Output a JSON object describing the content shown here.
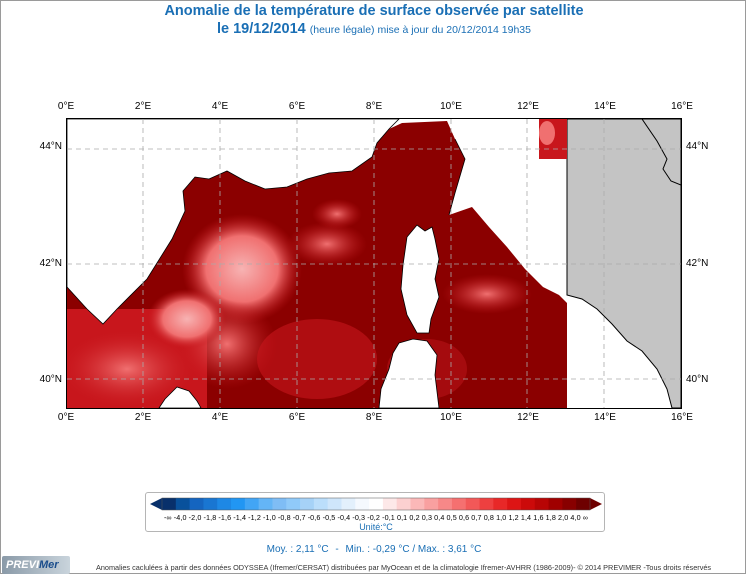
{
  "title": {
    "line1": "Anomalie de la température de surface observée par satellite",
    "date": "le 19/12/2014",
    "subtitle": "(heure légale) mise à jour du 20/12/2014 19h35"
  },
  "map": {
    "lon_labels": [
      "0°E",
      "2°E",
      "4°E",
      "6°E",
      "8°E",
      "10°E",
      "12°E",
      "14°E",
      "16°E"
    ],
    "lat_labels": [
      "44°N",
      "42°N",
      "40°N"
    ],
    "lon_range": [
      0,
      16
    ],
    "lat_range": [
      39.5,
      44.5
    ],
    "colors": {
      "land": "#c4c4c4",
      "anomaly_dark": "#8b0000",
      "anomaly_mid": "#c8161c",
      "anomaly_light": "#f07070",
      "anomaly_pale": "#f7b3b3",
      "no_data": "#ffffff"
    }
  },
  "legend": {
    "labels": "-∞ -4,0 -2,0 -1,8 -1,6 -1,4 -1,2 -1,0 -0,8 -0,7 -0,6 -0,5 -0,4 -0,3 -0,2 -0,1 0,1 0,2 0,3 0,4 0,5 0,6 0,7 0,8 1,0 1,2 1,4 1,6 1,8 2,0 4,0 ∞",
    "unit": "Unité:°C",
    "colors": [
      "#08306b",
      "#08519c",
      "#1565c0",
      "#1976d2",
      "#1e88e5",
      "#2196f3",
      "#42a5f5",
      "#64b5f6",
      "#7fbdf5",
      "#90caf9",
      "#a6d2f7",
      "#bbdefb",
      "#cfe6fb",
      "#e3f0fc",
      "#f5f9fe",
      "#ffffff",
      "#fde8e8",
      "#fcd0d0",
      "#fbb8b8",
      "#f9a0a0",
      "#f78888",
      "#f57070",
      "#f25858",
      "#ee4040",
      "#e82828",
      "#dd1515",
      "#cc0a0a",
      "#b80505",
      "#a00000",
      "#880000",
      "#6e0000"
    ]
  },
  "stats": {
    "mean": "Moy. : 2,11 °C",
    "sep": "-",
    "minmax": "Min. : -0,29 °C / Max. : 3,61 °C"
  },
  "footer": {
    "logo_a": "PREVI",
    "logo_b": "Mer",
    "credits": "Anomalies caclulées à partir des données ODYSSEA (Ifremer/CERSAT) distribuées par MyOcean et de la climatologie Ifremer-AVHRR (1986-2009)- © 2014 PREVIMER -Tous droits réservés"
  }
}
